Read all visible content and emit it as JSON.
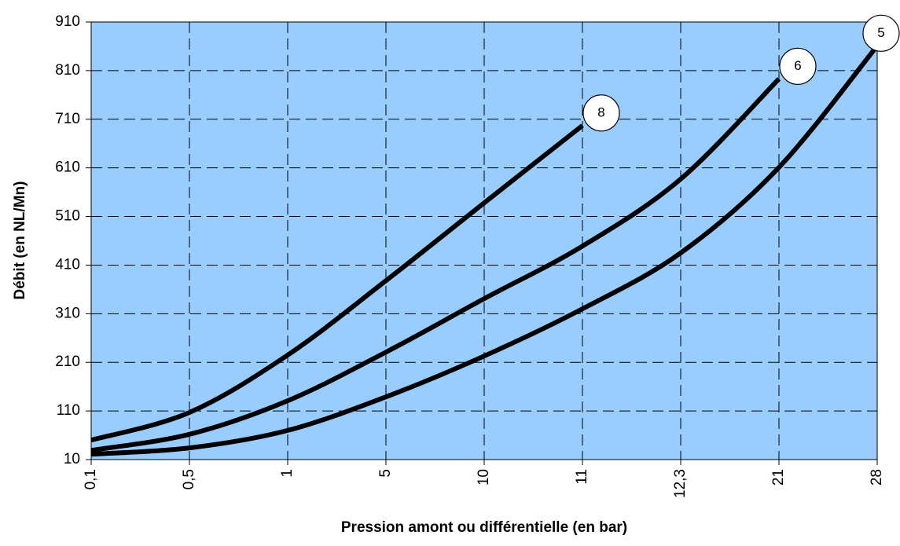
{
  "chart_data": {
    "type": "line",
    "x_label": "Pression amont ou différentielle (en bar)",
    "y_label": "Débit (en NL/Mn)",
    "categories": [
      "0,1",
      "0,5",
      "1",
      "5",
      "10",
      "11",
      "12,3",
      "21",
      "28"
    ],
    "series": [
      {
        "name": "8",
        "color": "#000000",
        "values": [
          50,
          107,
          225,
          378,
          538,
          697,
          null,
          null,
          null
        ]
      },
      {
        "name": "6",
        "color": "#000000",
        "values": [
          29,
          62,
          131,
          231,
          341,
          449,
          587,
          793,
          null
        ]
      },
      {
        "name": "5",
        "color": "#000000",
        "values": [
          21,
          34,
          70,
          139,
          223,
          320,
          435,
          611,
          861
        ]
      }
    ],
    "ylim": [
      10,
      910
    ],
    "yticks": [
      10,
      110,
      210,
      310,
      410,
      510,
      610,
      710,
      810,
      910
    ],
    "grid": true,
    "plot_background": "#99ccff"
  }
}
